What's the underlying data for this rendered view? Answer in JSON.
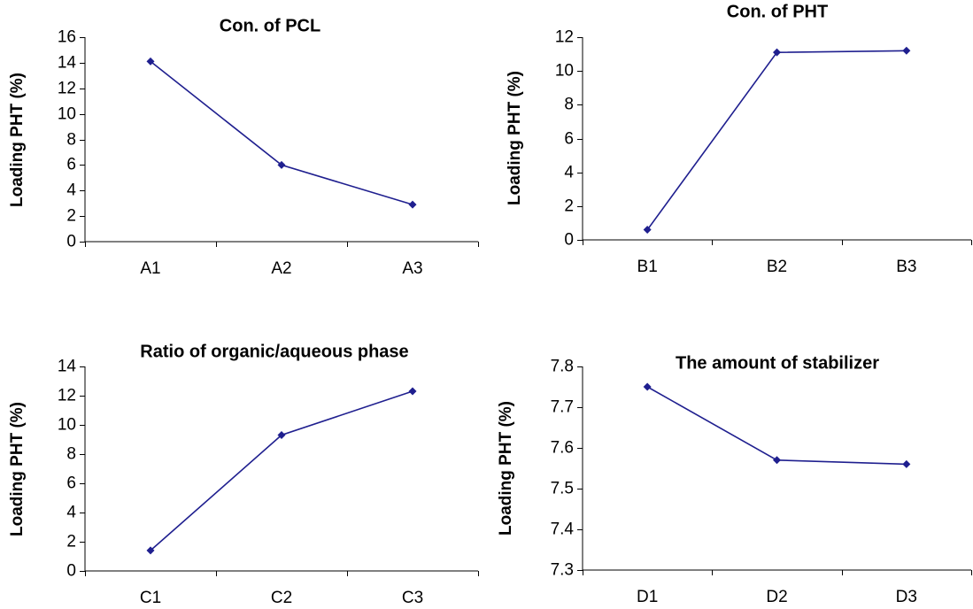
{
  "chart_data": [
    {
      "type": "line",
      "title": "Con. of PCL",
      "ylabel": "Loading PHT (%)",
      "xlabel": "",
      "categories": [
        "A1",
        "A2",
        "A3"
      ],
      "series": [
        {
          "values": [
            14.1,
            6.0,
            2.9
          ]
        }
      ],
      "ylim": [
        0,
        16
      ],
      "yticks": [
        0,
        2,
        4,
        6,
        8,
        10,
        12,
        14,
        16
      ],
      "ytick_labels": [
        "0",
        "2",
        "4",
        "6",
        "8",
        "10",
        "12",
        "14",
        "16"
      ],
      "color": "#1f1f8f",
      "grid": false,
      "legend": "none"
    },
    {
      "type": "line",
      "title": "Con. of PHT",
      "ylabel": "Loading PHT (%)",
      "xlabel": "",
      "categories": [
        "B1",
        "B2",
        "B3"
      ],
      "series": [
        {
          "values": [
            0.6,
            11.1,
            11.2
          ]
        }
      ],
      "ylim": [
        0,
        12
      ],
      "yticks": [
        0,
        2,
        4,
        6,
        8,
        10,
        12
      ],
      "ytick_labels": [
        "0",
        "2",
        "4",
        "6",
        "8",
        "10",
        "12"
      ],
      "color": "#1f1f8f",
      "grid": false,
      "legend": "none"
    },
    {
      "type": "line",
      "title": "Ratio of organic/aqueous phase",
      "ylabel": "Loading PHT (%)",
      "xlabel": "",
      "categories": [
        "C1",
        "C2",
        "C3"
      ],
      "series": [
        {
          "values": [
            1.4,
            9.3,
            12.3
          ]
        }
      ],
      "ylim": [
        0,
        14
      ],
      "yticks": [
        0,
        2,
        4,
        6,
        8,
        10,
        12,
        14
      ],
      "ytick_labels": [
        "0",
        "2",
        "4",
        "6",
        "8",
        "10",
        "12",
        "14"
      ],
      "color": "#1f1f8f",
      "grid": false,
      "legend": "none"
    },
    {
      "type": "line",
      "title": "The amount of stabilizer",
      "ylabel": "Loading PHT (%)",
      "xlabel": "",
      "categories": [
        "D1",
        "D2",
        "D3"
      ],
      "series": [
        {
          "values": [
            7.75,
            7.57,
            7.56
          ]
        }
      ],
      "ylim": [
        7.3,
        7.8
      ],
      "yticks": [
        7.3,
        7.4,
        7.5,
        7.6,
        7.7,
        7.8
      ],
      "ytick_labels": [
        "7.3",
        "7.4",
        "7.5",
        "7.6",
        "7.7",
        "7.8"
      ],
      "color": "#1f1f8f",
      "grid": false,
      "legend": "none"
    }
  ]
}
